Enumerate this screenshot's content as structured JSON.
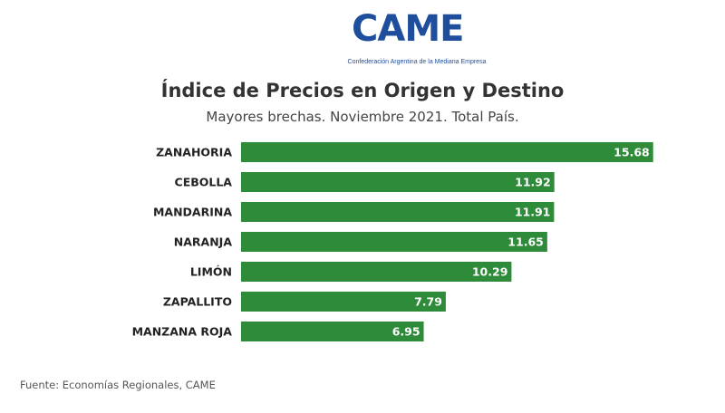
{
  "logo": {
    "word": "CAME",
    "subtitle": "Confederación Argentina de la Mediana Empresa"
  },
  "chart_data": {
    "type": "bar",
    "orientation": "horizontal",
    "title": "Índice de Precios en Origen y Destino",
    "subtitle": "Mayores brechas. Noviembre 2021. Total País.",
    "categories": [
      "ZANAHORIA",
      "CEBOLLA",
      "MANDARINA",
      "NARANJA",
      "LIMÓN",
      "ZAPALLITO",
      "MANZANA ROJA"
    ],
    "values": [
      15.68,
      11.92,
      11.91,
      11.65,
      10.29,
      7.79,
      6.95
    ],
    "value_labels": [
      "15.68",
      "11.92",
      "11.91",
      "11.65",
      "10.29",
      "7.79",
      "6.95"
    ],
    "bar_color": "#2e8b3a",
    "grid": false,
    "legend": false
  },
  "source": "Fuente: Economías Regionales, CAME"
}
